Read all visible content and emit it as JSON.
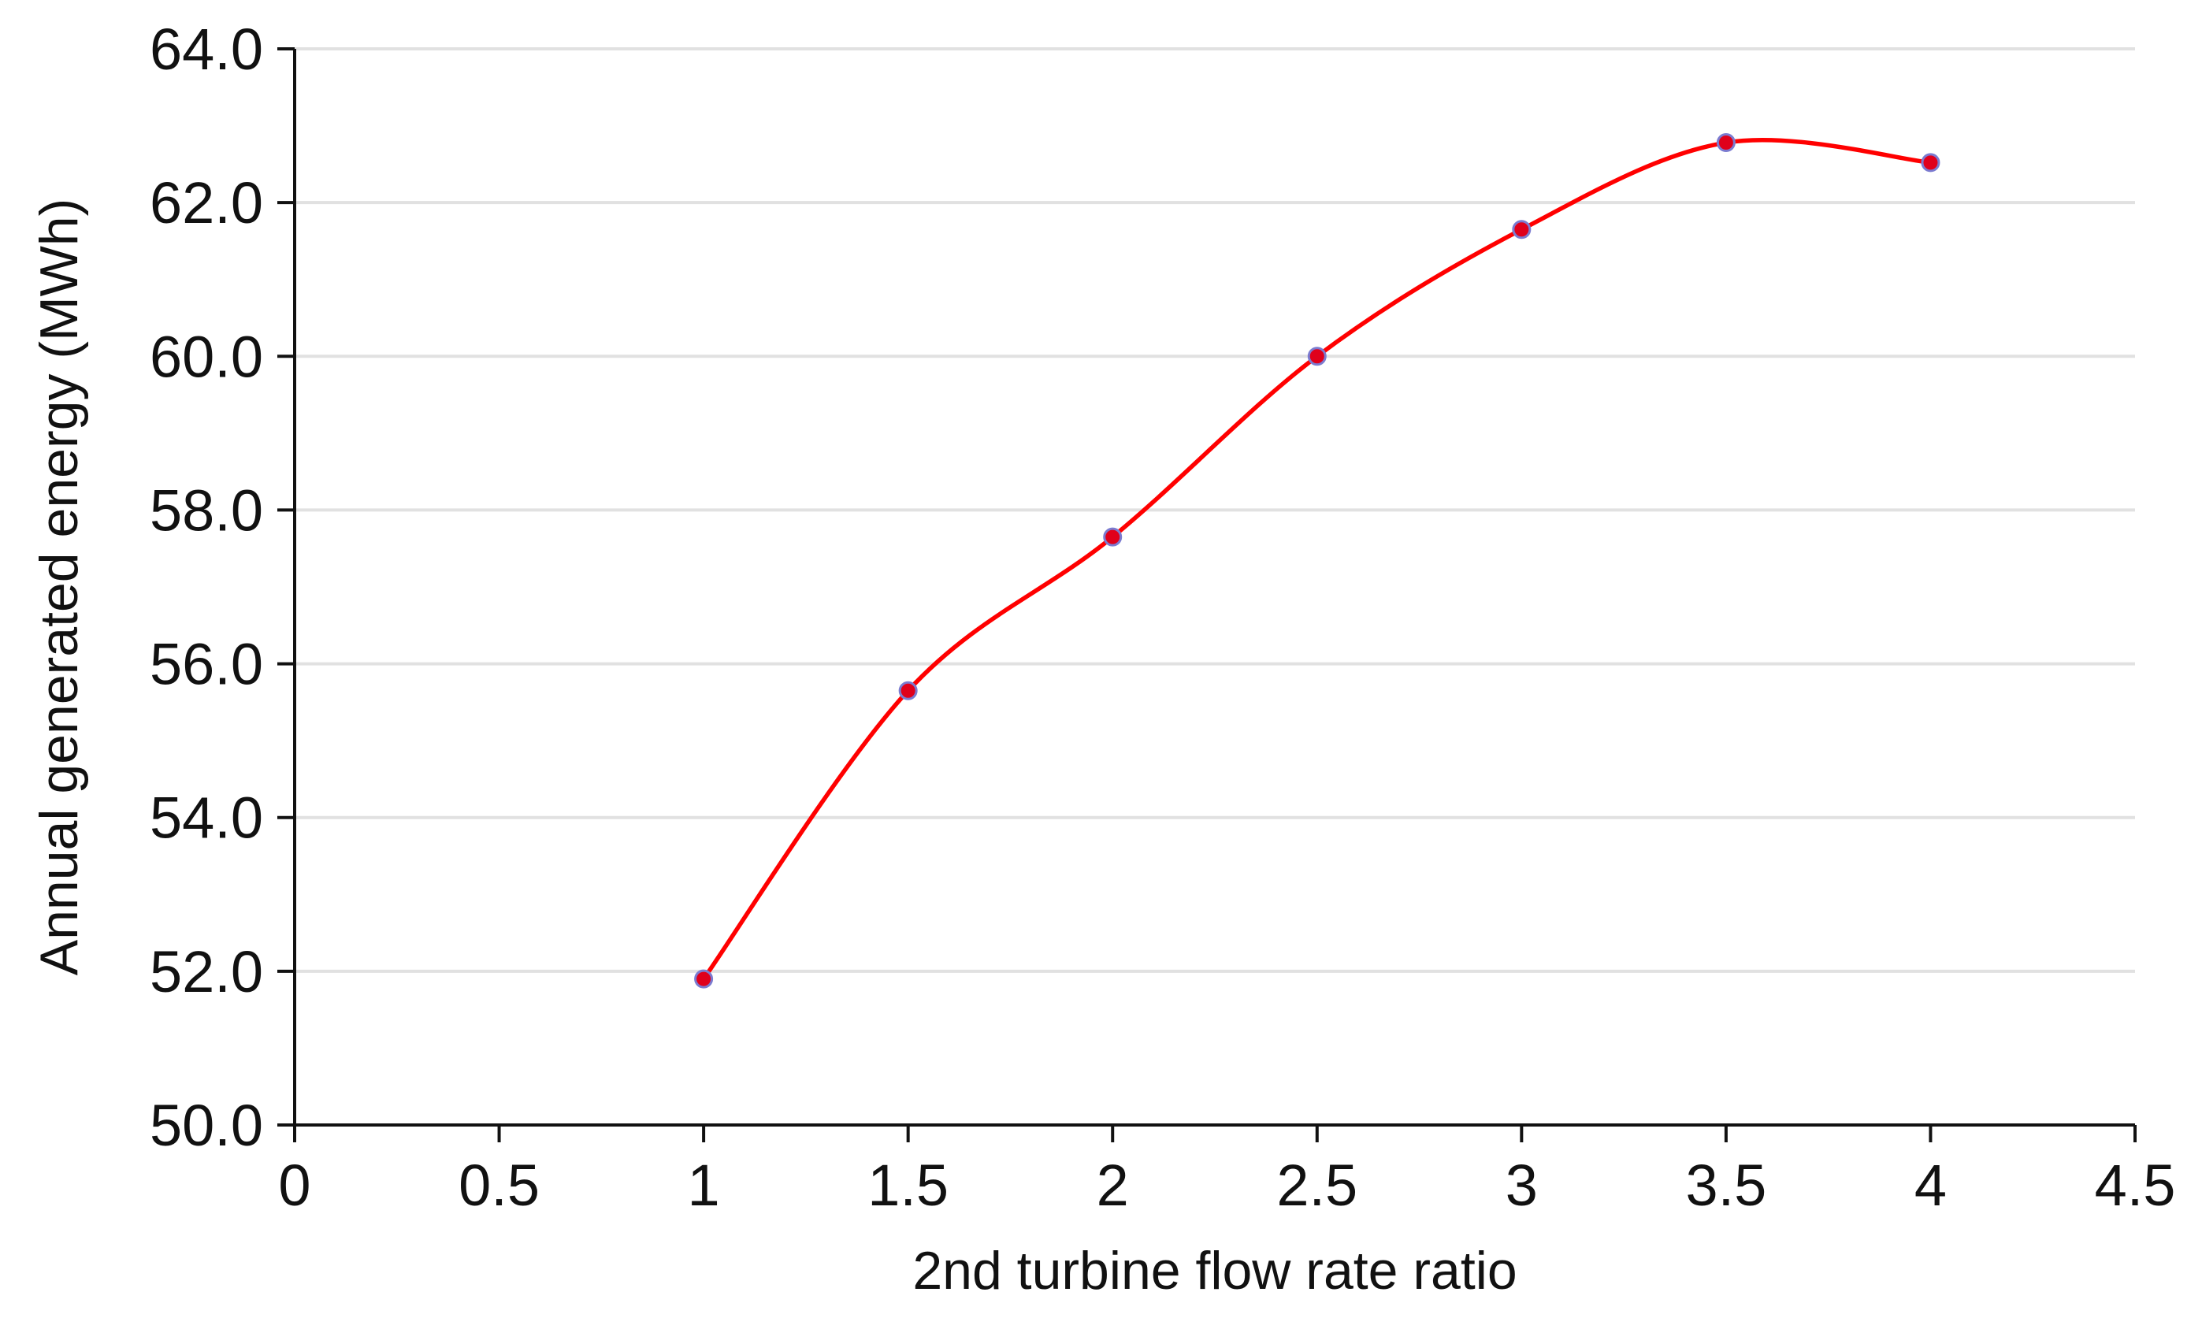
{
  "chart_data": {
    "type": "line",
    "xlabel": "2nd turbine flow rate ratio",
    "ylabel": "Annual generated energy (MWh)",
    "xlim": [
      0,
      4.5
    ],
    "ylim": [
      50.0,
      64.0
    ],
    "x_ticks": [
      "0",
      "0.5",
      "1",
      "1.5",
      "2",
      "2.5",
      "3",
      "3.5",
      "4",
      "4.5"
    ],
    "y_ticks": [
      "50.0",
      "52.0",
      "54.0",
      "56.0",
      "58.0",
      "60.0",
      "62.0",
      "64.0"
    ],
    "grid": "horizontal",
    "smooth": true,
    "series": [
      {
        "color": "#ff0000",
        "marker_color": "#e0001b",
        "x": [
          1,
          1.5,
          2,
          2.5,
          3,
          3.5,
          4
        ],
        "values": [
          51.9,
          55.65,
          57.65,
          60.0,
          61.65,
          62.78,
          62.52
        ]
      }
    ]
  }
}
